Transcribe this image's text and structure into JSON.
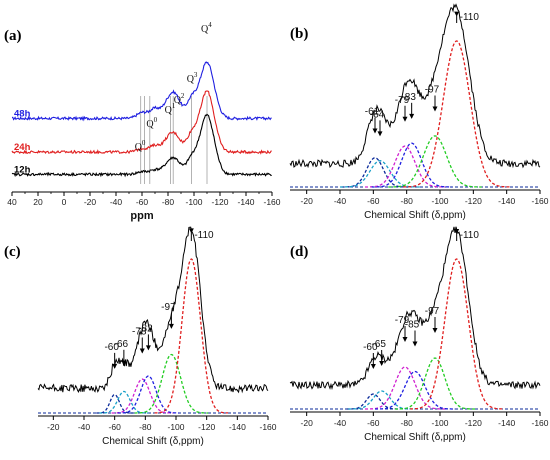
{
  "figure": {
    "colors": {
      "black": "#000000",
      "blue": "#1f1fe0",
      "red": "#e01f1f",
      "green": "#22cc22",
      "magenta": "#d020d0",
      "navy": "#0a2a9a",
      "cyan": "#18a0c8",
      "gridline": "#a0a0a0"
    }
  },
  "chart_data": [
    {
      "id": "a",
      "panel_label": "(a)",
      "type": "line",
      "xlabel": "ppm",
      "xlim": [
        40,
        -160
      ],
      "xticks": [
        "40",
        "20",
        "0",
        "-20",
        "-40",
        "-60",
        "-80",
        "-100",
        "-120",
        "-140",
        "-160"
      ],
      "series": [
        {
          "name": "48h",
          "color": "#1f1fe0",
          "offset": 2.3,
          "peaks": [
            [
              -60,
              0.18
            ],
            [
              -70,
              0.3
            ],
            [
              -80,
              0.45
            ],
            [
              -86,
              0.62
            ],
            [
              -98,
              0.55
            ],
            [
              -110,
              1.75
            ]
          ]
        },
        {
          "name": "24h",
          "color": "#e01f1f",
          "offset": 1.25,
          "peaks": [
            [
              -60,
              0.1
            ],
            [
              -70,
              0.2
            ],
            [
              -80,
              0.35
            ],
            [
              -86,
              0.45
            ],
            [
              -98,
              0.5
            ],
            [
              -110,
              1.9
            ]
          ]
        },
        {
          "name": "12h",
          "color": "#000000",
          "offset": 0.55,
          "peaks": [
            [
              -60,
              0.08
            ],
            [
              -70,
              0.14
            ],
            [
              -80,
              0.28
            ],
            [
              -86,
              0.4
            ],
            [
              -98,
              0.45
            ],
            [
              -110,
              1.85
            ]
          ]
        }
      ],
      "vlines": [
        -59,
        -62,
        -66,
        -82,
        -84,
        -98,
        -110
      ],
      "annotations": [
        {
          "base": "Q",
          "sup": "0",
          "x": -59
        },
        {
          "base": "Q",
          "sup": "0",
          "x": -68
        },
        {
          "base": "Q",
          "sup": "1",
          "x": -82
        },
        {
          "base": "Q",
          "sup": "2",
          "x": -89
        },
        {
          "base": "Q",
          "sup": "3",
          "x": -99
        },
        {
          "base": "Q",
          "sup": "4",
          "x": -110
        }
      ]
    },
    {
      "id": "b",
      "panel_label": "(b)",
      "type": "line",
      "xlabel": "Chemical Shift (δ,ppm)",
      "xlim": [
        -10,
        -160
      ],
      "xticks": [
        "-20",
        "-40",
        "-60",
        "-80",
        "-100",
        "-120",
        "-140",
        "-160"
      ],
      "components": [
        {
          "center": -61,
          "amp": 0.2,
          "width": 5,
          "color": "#0a2a9a"
        },
        {
          "center": -64,
          "amp": 0.18,
          "width": 6,
          "color": "#18a0c8"
        },
        {
          "center": -79,
          "amp": 0.28,
          "width": 6,
          "color": "#d020d0"
        },
        {
          "center": -83,
          "amp": 0.3,
          "width": 6,
          "color": "#1f1fe0"
        },
        {
          "center": -97,
          "amp": 0.35,
          "width": 7,
          "color": "#22cc22"
        },
        {
          "center": -110,
          "amp": 1.0,
          "width": 8,
          "color": "#e01f1f"
        }
      ],
      "peak_labels": [
        {
          "text": "-61",
          "x": -61
        },
        {
          "text": "-64",
          "x": -64
        },
        {
          "text": "-79",
          "x": -79
        },
        {
          "text": "-83",
          "x": -83
        },
        {
          "text": "-97",
          "x": -97
        },
        {
          "text": "-110",
          "x": -110
        }
      ]
    },
    {
      "id": "c",
      "panel_label": "(c)",
      "type": "line",
      "xlabel": "Chemical Shift (δ,ppm)",
      "xlim": [
        -10,
        -160
      ],
      "xticks": [
        "-20",
        "-40",
        "-60",
        "-80",
        "-100",
        "-120",
        "-140",
        "-160"
      ],
      "components": [
        {
          "center": -60,
          "amp": 0.12,
          "width": 3,
          "color": "#0a2a9a"
        },
        {
          "center": -66,
          "amp": 0.14,
          "width": 4,
          "color": "#18a0c8"
        },
        {
          "center": -78,
          "amp": 0.22,
          "width": 5,
          "color": "#d020d0"
        },
        {
          "center": -82,
          "amp": 0.24,
          "width": 5,
          "color": "#1f1fe0"
        },
        {
          "center": -97,
          "amp": 0.38,
          "width": 6,
          "color": "#22cc22"
        },
        {
          "center": -110,
          "amp": 1.0,
          "width": 6,
          "color": "#e01f1f"
        }
      ],
      "peak_labels": [
        {
          "text": "-60",
          "x": -60
        },
        {
          "text": "-66",
          "x": -66
        },
        {
          "text": "-78",
          "x": -78
        },
        {
          "text": "-82",
          "x": -82
        },
        {
          "text": "-97",
          "x": -97
        },
        {
          "text": "-110",
          "x": -110
        }
      ]
    },
    {
      "id": "d",
      "panel_label": "(d)",
      "type": "line",
      "xlabel": "Chemical Shift (δ,ppm)",
      "xlim": [
        -10,
        -160
      ],
      "xticks": [
        "-20",
        "-40",
        "-60",
        "-80",
        "-100",
        "-120",
        "-140",
        "-160"
      ],
      "components": [
        {
          "center": -60,
          "amp": 0.1,
          "width": 4,
          "color": "#0a2a9a"
        },
        {
          "center": -65,
          "amp": 0.12,
          "width": 5,
          "color": "#18a0c8"
        },
        {
          "center": -79,
          "amp": 0.28,
          "width": 6,
          "color": "#d020d0"
        },
        {
          "center": -85,
          "amp": 0.25,
          "width": 6,
          "color": "#1f1fe0"
        },
        {
          "center": -97,
          "amp": 0.34,
          "width": 6,
          "color": "#22cc22"
        },
        {
          "center": -110,
          "amp": 1.0,
          "width": 7,
          "color": "#e01f1f"
        }
      ],
      "peak_labels": [
        {
          "text": "-60",
          "x": -60
        },
        {
          "text": "-65",
          "x": -65
        },
        {
          "text": "-79",
          "x": -79
        },
        {
          "text": "-85",
          "x": -85
        },
        {
          "text": "-97",
          "x": -97
        },
        {
          "text": "-110",
          "x": -110
        }
      ]
    }
  ]
}
